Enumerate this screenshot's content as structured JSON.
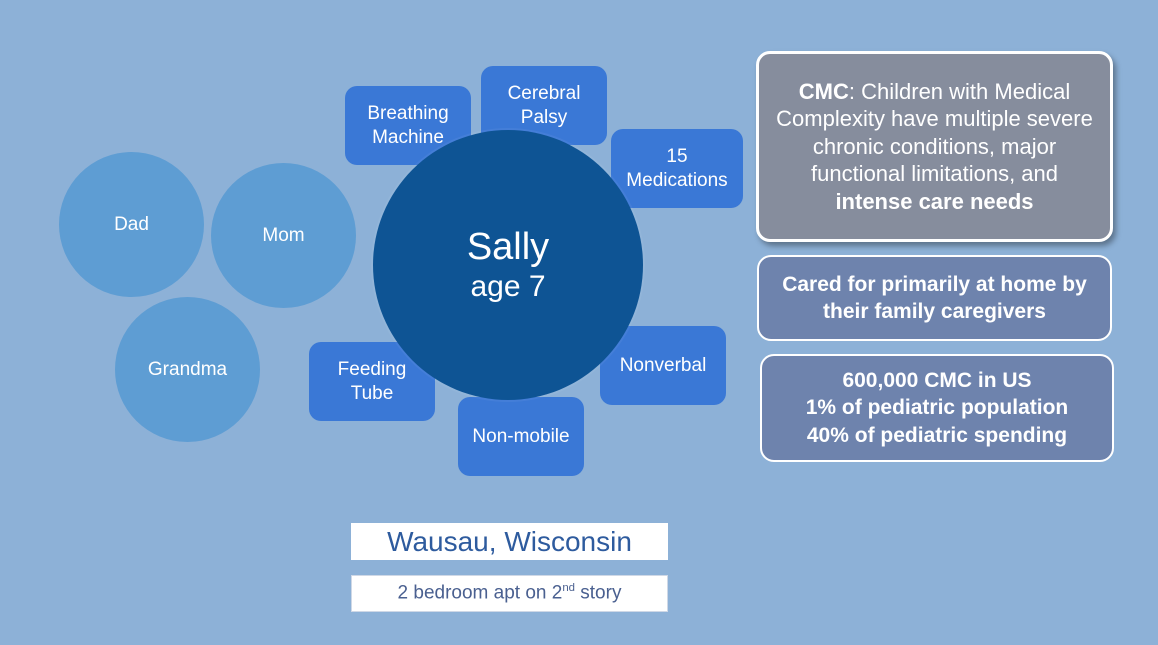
{
  "center": {
    "name": "Sally",
    "age": "age 7"
  },
  "family": {
    "dad": "Dad",
    "mom": "Mom",
    "grandma": "Grandma"
  },
  "conditions": {
    "breathing": "Breathing\nMachine",
    "cerebral": "Cerebral\nPalsy",
    "medications": "15\nMedications",
    "nonverbal": "Nonverbal",
    "nonmobile": "Non-mobile",
    "feeding": "Feeding\nTube"
  },
  "info": {
    "cmc_bold": "CMC",
    "cmc_text": ": Children with Medical Complexity have multiple severe chronic conditions, major functional limitations, and ",
    "cmc_emph": "intense care needs",
    "home": "Cared for primarily at home by their family caregivers",
    "stats": [
      "600,000 CMC in US",
      "1% of pediatric population",
      "40% of pediatric spending"
    ]
  },
  "location": {
    "city": "Wausau, Wisconsin",
    "apt_prefix": "2 bedroom apt on 2",
    "apt_sup": "nd",
    "apt_suffix": " story"
  },
  "colors": {
    "background": "#8db1d7",
    "family_circle": "#5e9dd3",
    "center_circle": "#0e5494",
    "condition_tag": "#3a78d6",
    "definition_box": "#868d9d",
    "fact_box": "#6e83ad",
    "city_text": "#2e5b9e"
  }
}
